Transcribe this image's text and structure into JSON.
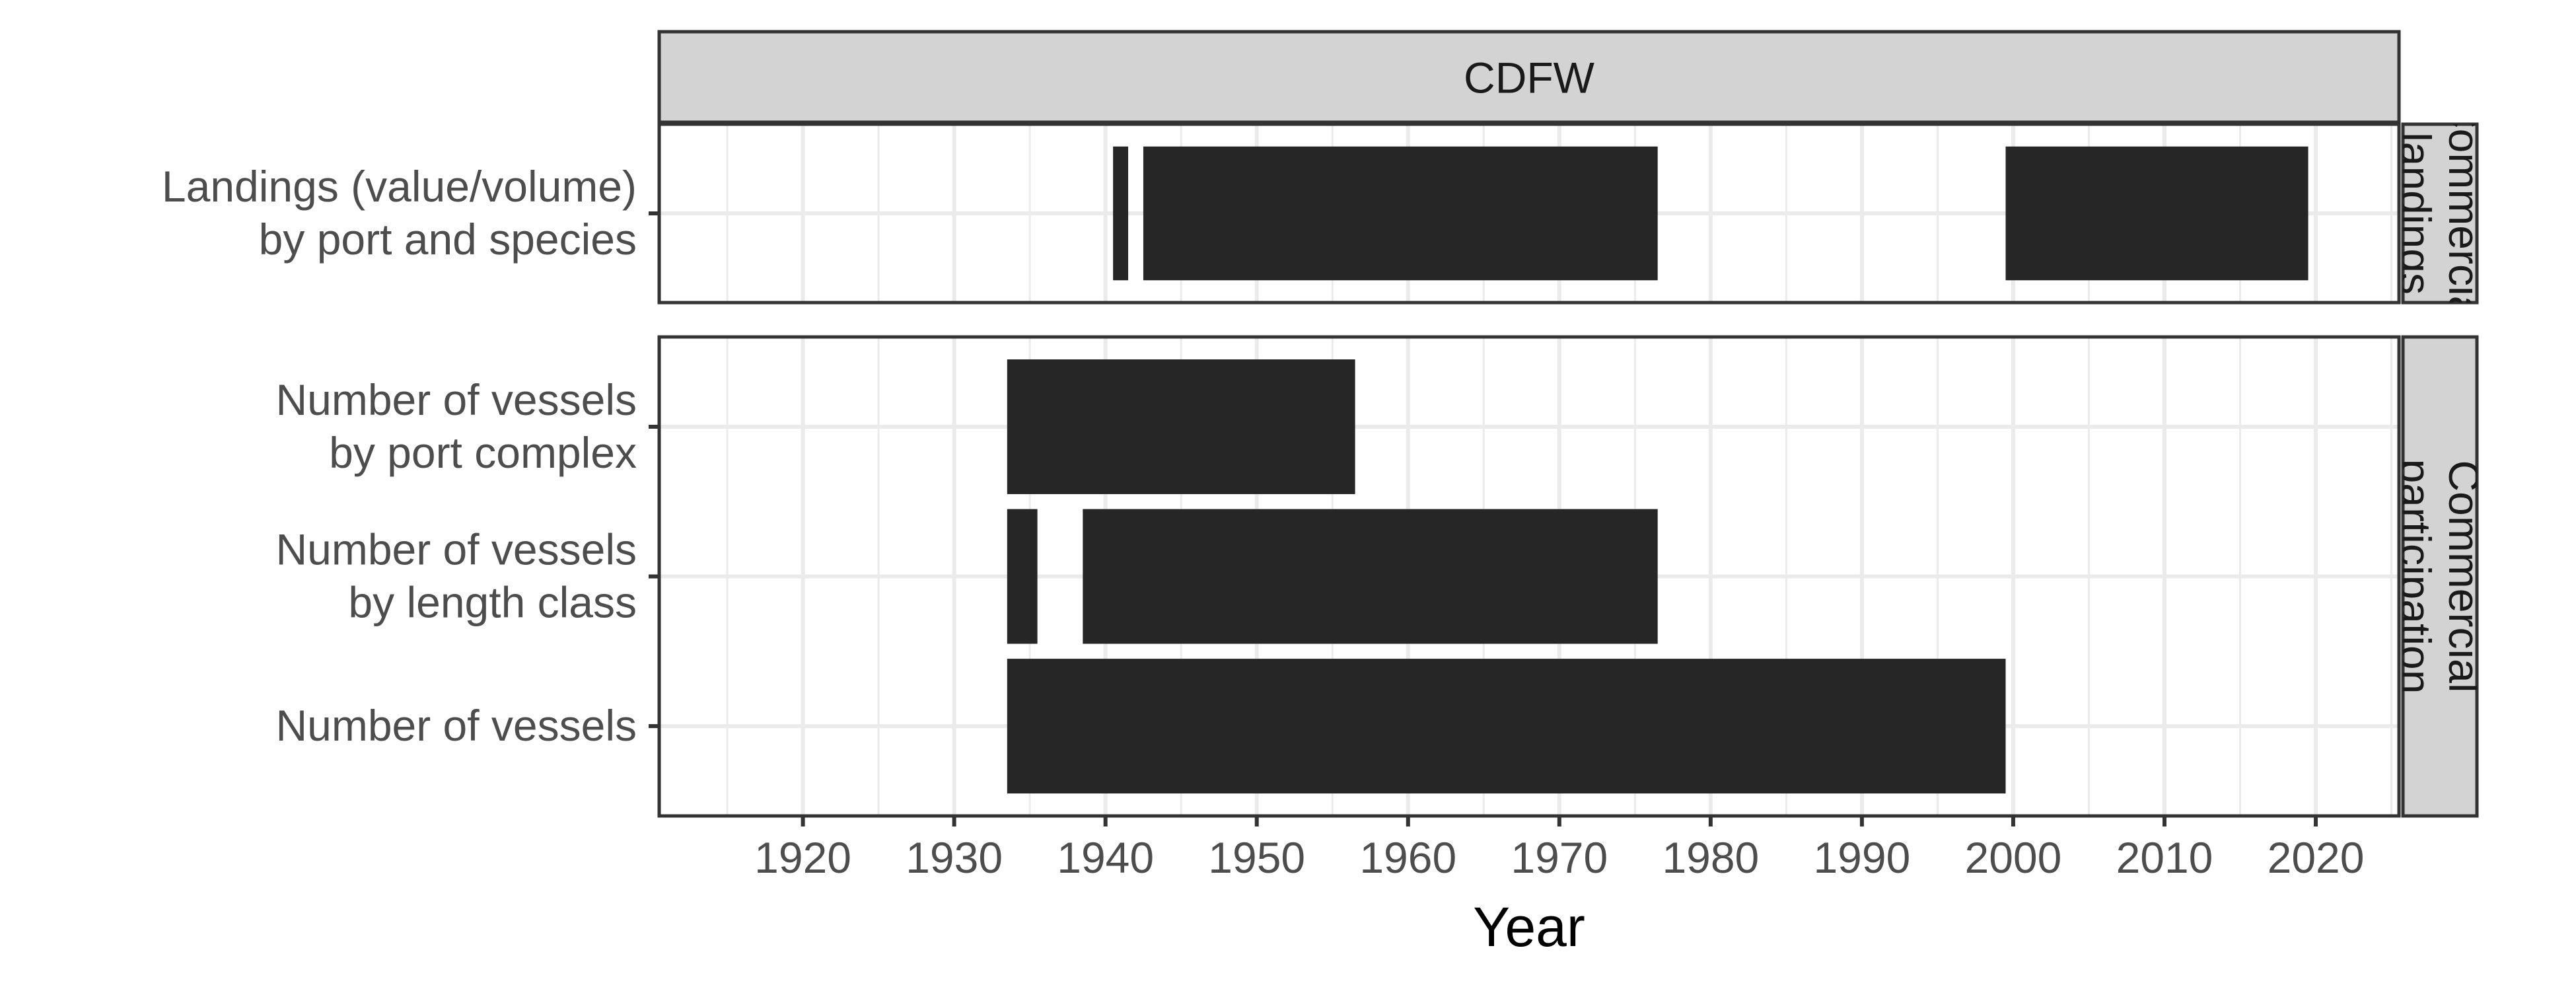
{
  "chart_data": {
    "type": "timeline",
    "title": "",
    "xlabel": "Year",
    "ylabel": "",
    "xlim": [
      1910.5,
      2025.5
    ],
    "x_ticks": [
      1920,
      1930,
      1940,
      1950,
      1960,
      1970,
      1980,
      1990,
      2000,
      2010,
      2020
    ],
    "x_tick_labels": [
      "1920",
      "1930",
      "1940",
      "1950",
      "1960",
      "1970",
      "1980",
      "1990",
      "2000",
      "2010",
      "2020"
    ],
    "grid": true,
    "column_strip": "CDFW",
    "panels": [
      {
        "name": "Commercial landings",
        "strip_label_lines": [
          "Commercial",
          "landings"
        ],
        "rows": [
          {
            "label_lines": [
              "Landings (value/volume)",
              "by port and species"
            ],
            "segments": [
              [
                1940.5,
                1941.5
              ],
              [
                1942.5,
                1976.5
              ],
              [
                1999.5,
                2019.5
              ]
            ]
          }
        ]
      },
      {
        "name": "Commercial participation",
        "strip_label_lines": [
          "Commercial",
          "participation"
        ],
        "rows": [
          {
            "label_lines": [
              "Number of vessels",
              "by port complex"
            ],
            "segments": [
              [
                1933.5,
                1956.5
              ]
            ]
          },
          {
            "label_lines": [
              "Number of vessels",
              "by length class"
            ],
            "segments": [
              [
                1933.5,
                1935.5
              ],
              [
                1938.5,
                1976.5
              ]
            ]
          },
          {
            "label_lines": [
              "Number of vessels"
            ],
            "segments": [
              [
                1933.5,
                1999.5
              ]
            ]
          }
        ]
      }
    ],
    "bar_color": "#262626"
  }
}
